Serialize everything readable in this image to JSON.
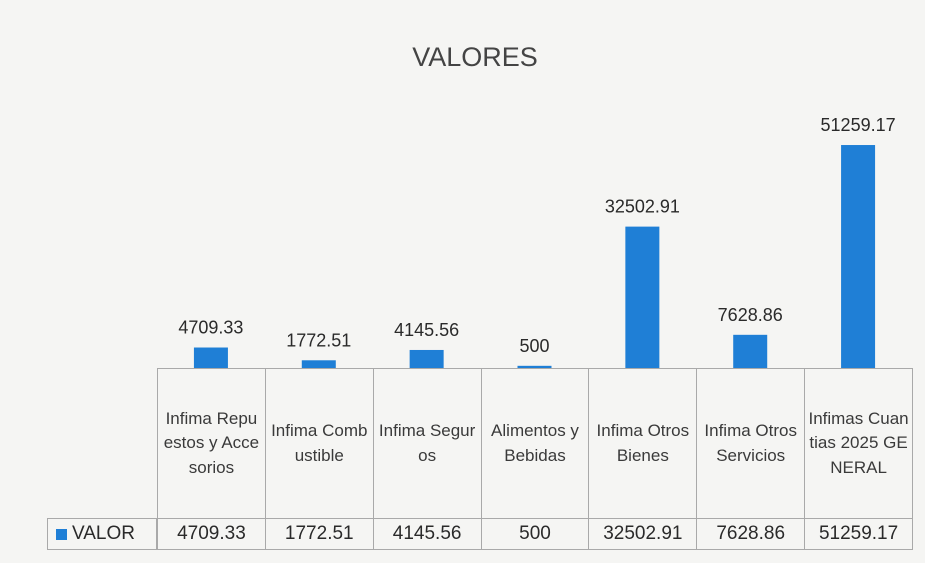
{
  "chart_data": {
    "type": "bar",
    "title": "VALORES",
    "categories": [
      "Infima Repuestos y Accesorios",
      "Infima Combustible",
      "Infima Seguros",
      "Alimentos y Bebidas",
      "Infima Otros Bienes",
      "Infima Otros Servicios",
      "Infimas Cuantias 2025 GENERAL"
    ],
    "series": [
      {
        "name": "VALOR",
        "color": "#1f7fd6",
        "values": [
          4709.33,
          1772.51,
          4145.56,
          500,
          32502.91,
          7628.86,
          51259.17
        ]
      }
    ],
    "ylim": [
      0,
      60000
    ]
  }
}
